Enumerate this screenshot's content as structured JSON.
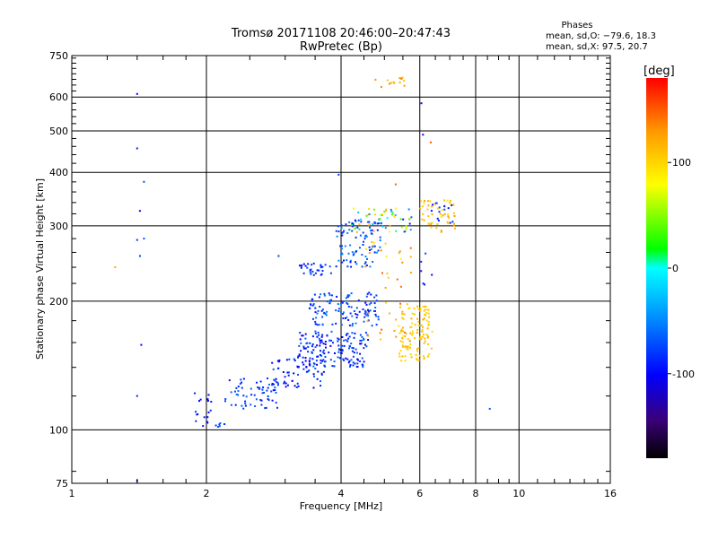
{
  "chart_data": {
    "type": "scatter",
    "title": "Tromsø 20171108 20:46:00–20:47:43",
    "subtitle": "RwPretec (Bp)",
    "xlabel": "Frequency [MHz]",
    "ylabel": "Stationary phase Virtual Height [km]",
    "x_scale": "log",
    "y_scale": "log",
    "xlim": [
      1,
      16
    ],
    "ylim": [
      75,
      750
    ],
    "x_ticks": [
      1,
      2,
      4,
      6,
      8,
      10,
      16
    ],
    "y_ticks": [
      75,
      100,
      200,
      300,
      400,
      500,
      600,
      750
    ],
    "grid": true,
    "phase_info": {
      "title": "Phases",
      "line_o": "mean, sd,O: −79.6, 18.3",
      "line_x": "mean, sd,X:  97.5, 20.7"
    },
    "colorbar": {
      "label": "[deg]",
      "range": [
        -180,
        180
      ],
      "ticks": [
        100,
        0,
        -100
      ],
      "colors": [
        "#000000",
        "#3a0078",
        "#0000ff",
        "#00aaff",
        "#00ffff",
        "#00ff00",
        "#ffff00",
        "#ff9900",
        "#ff0000"
      ]
    },
    "clusters": [
      {
        "f": [
          1.85,
          2.05
        ],
        "h": [
          100,
          125
        ],
        "phase": [
          -110,
          -80
        ],
        "n": 18
      },
      {
        "f": [
          2.1,
          2.2
        ],
        "h": [
          101,
          106
        ],
        "phase": [
          -90,
          -60
        ],
        "n": 6
      },
      {
        "f": [
          2.2,
          2.9
        ],
        "h": [
          112,
          132
        ],
        "phase": [
          -100,
          -60
        ],
        "n": 60
      },
      {
        "f": [
          2.8,
          3.7
        ],
        "h": [
          125,
          150
        ],
        "phase": [
          -120,
          -60
        ],
        "n": 70
      },
      {
        "f": [
          3.2,
          4.6
        ],
        "h": [
          140,
          170
        ],
        "phase": [
          -110,
          -60
        ],
        "n": 160
      },
      {
        "f": [
          3.4,
          4.9
        ],
        "h": [
          175,
          210
        ],
        "phase": [
          -100,
          -50
        ],
        "n": 120
      },
      {
        "f": [
          3.2,
          3.8
        ],
        "h": [
          230,
          245
        ],
        "phase": [
          -100,
          -70
        ],
        "n": 30
      },
      {
        "f": [
          3.9,
          4.9
        ],
        "h": [
          240,
          310
        ],
        "phase": [
          -100,
          -40
        ],
        "n": 90
      },
      {
        "f": [
          4.2,
          5.8
        ],
        "h": [
          290,
          330
        ],
        "phase": [
          -100,
          140
        ],
        "n": 60
      },
      {
        "f": [
          5.4,
          6.4
        ],
        "h": [
          145,
          195
        ],
        "phase": [
          95,
          120
        ],
        "n": 110
      },
      {
        "f": [
          4.5,
          5.8
        ],
        "h": [
          160,
          280
        ],
        "phase": [
          80,
          150
        ],
        "n": 45
      },
      {
        "f": [
          6.0,
          7.2
        ],
        "h": [
          290,
          345
        ],
        "phase": [
          90,
          130
        ],
        "n": 50
      },
      {
        "f": [
          6.3,
          7.2
        ],
        "h": [
          300,
          340
        ],
        "phase": [
          -100,
          -70
        ],
        "n": 14
      },
      {
        "f": [
          4.7,
          5.6
        ],
        "h": [
          630,
          670
        ],
        "phase": [
          100,
          150
        ],
        "n": 14
      },
      {
        "f": [
          6.0,
          6.4
        ],
        "h": [
          200,
          260
        ],
        "phase": [
          -110,
          -70
        ],
        "n": 6
      }
    ],
    "points": [
      {
        "f": 1.4,
        "h": 610,
        "phase": -100
      },
      {
        "f": 1.4,
        "h": 455,
        "phase": -90
      },
      {
        "f": 1.45,
        "h": 380,
        "phase": -70
      },
      {
        "f": 1.42,
        "h": 325,
        "phase": -100
      },
      {
        "f": 1.4,
        "h": 278,
        "phase": -80
      },
      {
        "f": 1.45,
        "h": 280,
        "phase": -70
      },
      {
        "f": 1.42,
        "h": 255,
        "phase": -80
      },
      {
        "f": 1.25,
        "h": 240,
        "phase": 120
      },
      {
        "f": 1.43,
        "h": 158,
        "phase": -100
      },
      {
        "f": 1.4,
        "h": 120,
        "phase": -90
      },
      {
        "f": 1.4,
        "h": 76,
        "phase": -100
      },
      {
        "f": 2.9,
        "h": 255,
        "phase": -80
      },
      {
        "f": 6.05,
        "h": 580,
        "phase": -110
      },
      {
        "f": 6.1,
        "h": 490,
        "phase": -110
      },
      {
        "f": 6.35,
        "h": 470,
        "phase": 150
      },
      {
        "f": 3.95,
        "h": 395,
        "phase": -80
      },
      {
        "f": 5.3,
        "h": 375,
        "phase": 150
      },
      {
        "f": 8.6,
        "h": 112,
        "phase": -70
      }
    ]
  }
}
